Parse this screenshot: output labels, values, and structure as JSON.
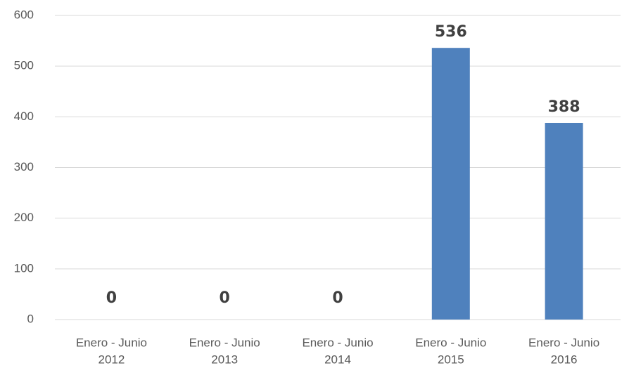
{
  "chart_data": {
    "type": "bar",
    "categories": [
      [
        "Enero - Junio",
        "2012"
      ],
      [
        "Enero - Junio",
        "2013"
      ],
      [
        "Enero - Junio",
        "2014"
      ],
      [
        "Enero - Junio",
        "2015"
      ],
      [
        "Enero - Junio",
        "2016"
      ]
    ],
    "values": [
      0,
      0,
      0,
      536,
      388
    ],
    "data_labels": [
      "0",
      "0",
      "0",
      "536",
      "388"
    ],
    "y_ticks": [
      "0",
      "100",
      "200",
      "300",
      "400",
      "500",
      "600"
    ],
    "ylim": [
      0,
      600
    ],
    "grid": true,
    "legend": "none",
    "bar_color": "#4f81bd",
    "title": "",
    "xlabel": "",
    "ylabel": ""
  }
}
